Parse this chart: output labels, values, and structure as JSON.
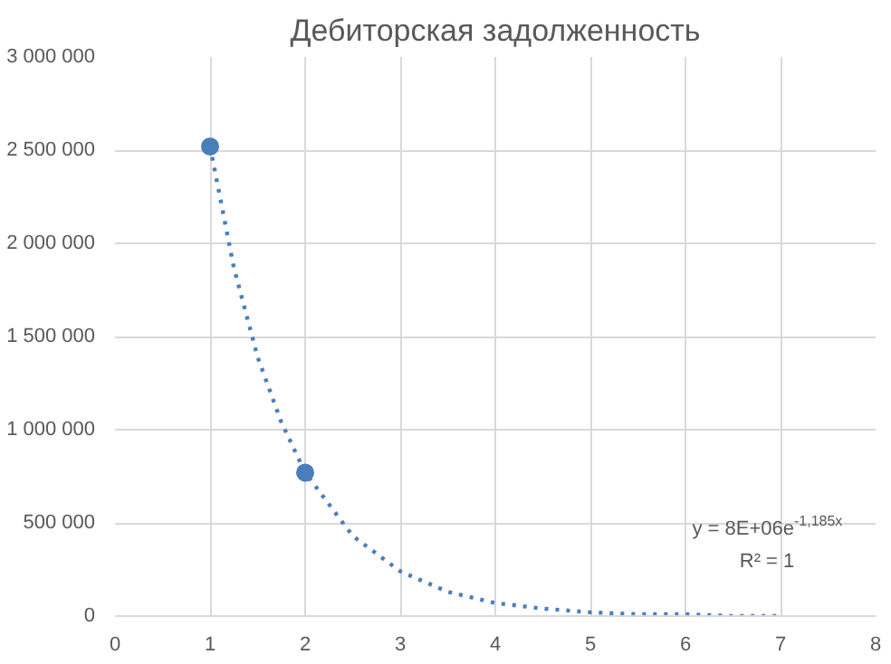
{
  "chart_data": {
    "type": "scatter",
    "title": "Дебиторская задолженность",
    "series": [
      {
        "color": "#4a7ebb",
        "marker": "circle",
        "x": [
          1,
          2
        ],
        "values": [
          2520000,
          770000
        ]
      },
      {
        "type": "line",
        "color": "#4a7ebb",
        "line_style": "dotted",
        "x": [
          1,
          1.25,
          1.5,
          1.75,
          2,
          2.5,
          3,
          3.5,
          4,
          4.5,
          5,
          5.5,
          6,
          6.5,
          7
        ],
        "values": [
          2520000,
          1870000,
          1390000,
          1040000,
          770000,
          430000,
          240000,
          130000,
          70000,
          40000,
          20000,
          10000,
          10000,
          0,
          0
        ]
      }
    ],
    "xlim": [
      0,
      8
    ],
    "xticks": [
      0,
      1,
      2,
      3,
      4,
      5,
      6,
      7,
      8
    ],
    "ylim": [
      0,
      3000000
    ],
    "yticks": [
      {
        "value": 0,
        "label": "0"
      },
      {
        "value": 500000,
        "label": "500 000"
      },
      {
        "value": 1000000,
        "label": "1 000 000"
      },
      {
        "value": 1500000,
        "label": "1 500 000"
      },
      {
        "value": 2000000,
        "label": "2 000 000"
      },
      {
        "value": 2500000,
        "label": "2 500 000"
      },
      {
        "value": 3000000,
        "label": "3 000 000"
      }
    ],
    "grid": true,
    "annotations": [
      "y = 8E+06e$^{-1,185x}$",
      "R² = 1"
    ]
  }
}
